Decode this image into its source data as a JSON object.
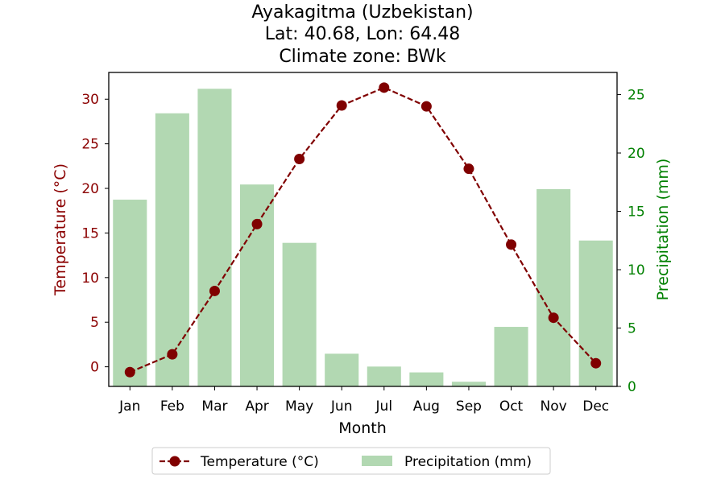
{
  "chart_data": {
    "type": "bar+line",
    "title_lines": [
      "Ayakagitma (Uzbekistan)",
      "Lat: 40.68, Lon: 64.48",
      "Climate zone: BWk"
    ],
    "xlabel": "Month",
    "ylabel_left": "Temperature (°C)",
    "ylabel_right": "Precipitation (mm)",
    "categories": [
      "Jan",
      "Feb",
      "Mar",
      "Apr",
      "May",
      "Jun",
      "Jul",
      "Aug",
      "Sep",
      "Oct",
      "Nov",
      "Dec"
    ],
    "temperature": {
      "name": "Temperature (°C)",
      "values": [
        -0.6,
        1.4,
        8.5,
        16.0,
        23.3,
        29.3,
        31.3,
        29.2,
        22.2,
        13.7,
        5.5,
        0.4
      ],
      "axis": "left",
      "color": "#800000",
      "style": "dashed",
      "marker": "circle"
    },
    "precipitation": {
      "name": "Precipitation (mm)",
      "values": [
        16.0,
        23.4,
        25.5,
        17.3,
        12.3,
        2.8,
        1.7,
        1.2,
        0.4,
        5.1,
        16.9,
        12.5
      ],
      "axis": "right",
      "color": "#b2d8b2"
    },
    "ylim_left": [
      -2.2,
      33.0
    ],
    "ylim_right": [
      0,
      26.9
    ],
    "yticks_left": [
      0,
      5,
      10,
      15,
      20,
      25,
      30
    ],
    "yticks_right": [
      0,
      5,
      10,
      15,
      20,
      25
    ],
    "left_axis_color": "#8b0000",
    "right_axis_color": "#008000",
    "legend": {
      "placement": "bottom-center",
      "entries": [
        "Temperature (°C)",
        "Precipitation (mm)"
      ]
    },
    "grid": false
  }
}
